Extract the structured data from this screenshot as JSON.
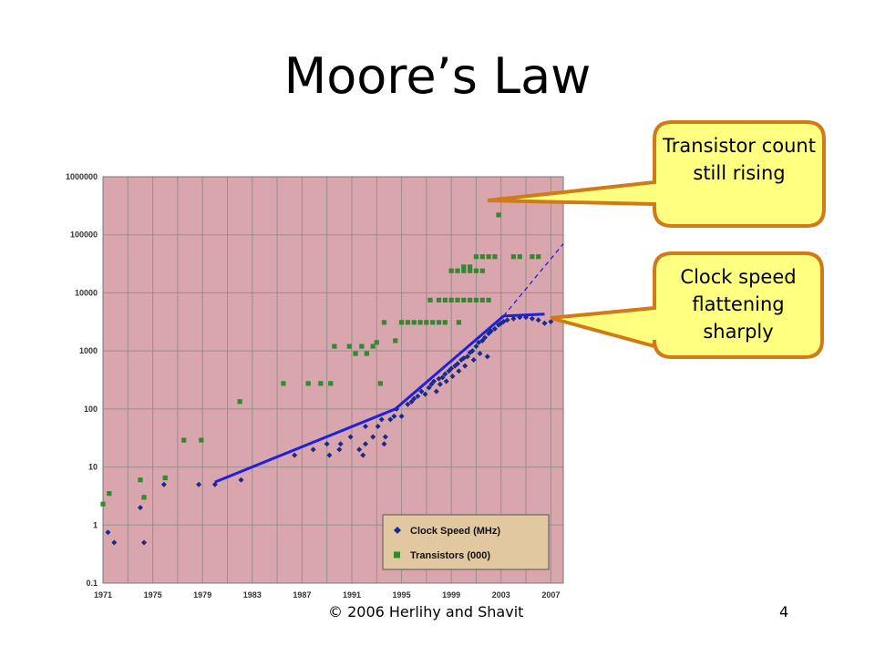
{
  "slide": {
    "title": "Moore’s Law",
    "footer": "© 2006 Herlihy and Shavit",
    "page_number": "4"
  },
  "callouts": {
    "transistor": "Transistor count still rising",
    "clock": "Clock speed flattening sharply"
  },
  "colors": {
    "plot_bg": "#d8a6ac",
    "grid": "#9a8d8f",
    "clock_series": "#1a2a8c",
    "transistor_series": "#2e8b2e",
    "trend_line": "#1f1fe0",
    "callout_fill": "#ffff80",
    "callout_border": "#d07a18"
  },
  "chart_data": {
    "type": "scatter",
    "title": "",
    "xlabel": "",
    "ylabel": "",
    "x_ticks": [
      "1971",
      "1975",
      "1979",
      "1983",
      "1987",
      "1991",
      "1995",
      "1999",
      "2003",
      "2007"
    ],
    "y_ticks": [
      "1000000",
      "100000",
      "10000",
      "1000",
      "100",
      "10",
      "1",
      "0.1"
    ],
    "xlim": [
      1971,
      2008
    ],
    "ylim": [
      0.1,
      1000000
    ],
    "y_scale": "log",
    "grid": true,
    "legend_position": "bottom-right",
    "series": [
      {
        "name": "Clock Speed (MHz)",
        "marker": "diamond",
        "points": [
          [
            1971.4,
            0.75
          ],
          [
            1971.9,
            0.5
          ],
          [
            1974.0,
            2
          ],
          [
            1974.3,
            0.5
          ],
          [
            1975.9,
            5
          ],
          [
            1978.7,
            5
          ],
          [
            1980.0,
            5
          ],
          [
            1982.1,
            6
          ],
          [
            1986.4,
            16
          ],
          [
            1987.9,
            20
          ],
          [
            1989.0,
            25
          ],
          [
            1989.2,
            16
          ],
          [
            1990.0,
            20
          ],
          [
            1990.1,
            25
          ],
          [
            1990.9,
            33
          ],
          [
            1991.6,
            20
          ],
          [
            1991.9,
            16
          ],
          [
            1992.1,
            25
          ],
          [
            1992.1,
            50
          ],
          [
            1992.7,
            33
          ],
          [
            1993.1,
            50
          ],
          [
            1993.4,
            66
          ],
          [
            1993.6,
            25
          ],
          [
            1993.7,
            33
          ],
          [
            1994.1,
            66
          ],
          [
            1994.4,
            75
          ],
          [
            1994.6,
            100
          ],
          [
            1995.0,
            75
          ],
          [
            1995.5,
            120
          ],
          [
            1995.8,
            133
          ],
          [
            1996.0,
            150
          ],
          [
            1996.3,
            166
          ],
          [
            1996.6,
            200
          ],
          [
            1996.9,
            180
          ],
          [
            1997.2,
            233
          ],
          [
            1997.4,
            266
          ],
          [
            1997.6,
            300
          ],
          [
            1997.8,
            200
          ],
          [
            1998.0,
            333
          ],
          [
            1998.1,
            266
          ],
          [
            1998.3,
            350
          ],
          [
            1998.5,
            400
          ],
          [
            1998.6,
            300
          ],
          [
            1998.8,
            450
          ],
          [
            1999.0,
            500
          ],
          [
            1999.1,
            366
          ],
          [
            1999.3,
            550
          ],
          [
            1999.5,
            600
          ],
          [
            1999.6,
            450
          ],
          [
            1999.8,
            700
          ],
          [
            2000.0,
            750
          ],
          [
            2000.1,
            550
          ],
          [
            2000.3,
            800
          ],
          [
            2000.5,
            933
          ],
          [
            2000.7,
            1000
          ],
          [
            2000.8,
            700
          ],
          [
            2001.0,
            1200
          ],
          [
            2001.2,
            1400
          ],
          [
            2001.3,
            900
          ],
          [
            2001.5,
            1500
          ],
          [
            2001.7,
            1700
          ],
          [
            2001.9,
            800
          ],
          [
            2002.0,
            2000
          ],
          [
            2002.2,
            2200
          ],
          [
            2002.5,
            2400
          ],
          [
            2002.8,
            2800
          ],
          [
            2003.0,
            3000
          ],
          [
            2003.2,
            3200
          ],
          [
            2003.5,
            3400
          ],
          [
            2004.0,
            3600
          ],
          [
            2004.5,
            3800
          ],
          [
            2005.0,
            3800
          ],
          [
            2005.5,
            3600
          ],
          [
            2006.0,
            3400
          ],
          [
            2006.5,
            3000
          ],
          [
            2007.0,
            3200
          ]
        ]
      },
      {
        "name": "Transistors (000)",
        "marker": "square",
        "points": [
          [
            1971.0,
            2.3
          ],
          [
            1971.5,
            3.5
          ],
          [
            1974.0,
            6
          ],
          [
            1974.3,
            3
          ],
          [
            1976.0,
            6.5
          ],
          [
            1977.5,
            29
          ],
          [
            1978.9,
            29
          ],
          [
            1982.0,
            134
          ],
          [
            1985.5,
            275
          ],
          [
            1987.5,
            275
          ],
          [
            1988.5,
            275
          ],
          [
            1989.3,
            275
          ],
          [
            1989.6,
            1200
          ],
          [
            1990.8,
            1200
          ],
          [
            1991.3,
            900
          ],
          [
            1991.8,
            1200
          ],
          [
            1992.2,
            900
          ],
          [
            1992.7,
            1200
          ],
          [
            1993.0,
            1400
          ],
          [
            1993.3,
            275
          ],
          [
            1993.6,
            3100
          ],
          [
            1994.5,
            1500
          ],
          [
            1995.0,
            3100
          ],
          [
            1995.5,
            3100
          ],
          [
            1996.0,
            3100
          ],
          [
            1996.5,
            3100
          ],
          [
            1997.0,
            3100
          ],
          [
            1997.5,
            3100
          ],
          [
            1998.0,
            3100
          ],
          [
            1998.5,
            3100
          ],
          [
            1997.3,
            7500
          ],
          [
            1998.0,
            7500
          ],
          [
            1998.5,
            7500
          ],
          [
            1999.0,
            7500
          ],
          [
            1999.5,
            7500
          ],
          [
            2000.0,
            7500
          ],
          [
            2000.5,
            7500
          ],
          [
            2001.0,
            7500
          ],
          [
            2001.5,
            7500
          ],
          [
            2002.0,
            7500
          ],
          [
            1999.6,
            3100
          ],
          [
            1999.0,
            24000
          ],
          [
            1999.5,
            24000
          ],
          [
            2000.0,
            24000
          ],
          [
            2000.5,
            24000
          ],
          [
            2001.0,
            24000
          ],
          [
            2001.5,
            24000
          ],
          [
            2000.0,
            28000
          ],
          [
            2000.5,
            28000
          ],
          [
            2001.0,
            42000
          ],
          [
            2001.5,
            42000
          ],
          [
            2002.0,
            42000
          ],
          [
            2002.5,
            42000
          ],
          [
            2002.8,
            220000
          ],
          [
            2003.5,
            410000
          ],
          [
            2004.0,
            42000
          ],
          [
            2004.5,
            42000
          ],
          [
            2005.5,
            42000
          ],
          [
            2006.0,
            42000
          ]
        ]
      }
    ],
    "trend_lines": [
      {
        "style": "solid",
        "points": [
          [
            1980,
            5.5
          ],
          [
            1994.5,
            100
          ],
          [
            2003.2,
            4000
          ],
          [
            2006.5,
            4300
          ]
        ]
      },
      {
        "style": "dashed",
        "points": [
          [
            2003.2,
            4000
          ],
          [
            2008,
            70000
          ]
        ]
      }
    ]
  }
}
